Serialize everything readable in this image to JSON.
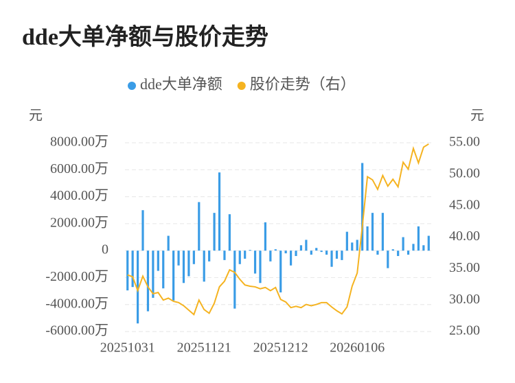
{
  "chart_data": {
    "type": "bar-line",
    "title": "dde大单净额与股价走势",
    "y_label": "元",
    "y2_label": "元",
    "categories": [
      "20251031",
      null,
      null,
      null,
      null,
      null,
      null,
      null,
      null,
      null,
      null,
      null,
      null,
      null,
      null,
      "20251121",
      null,
      null,
      null,
      null,
      null,
      null,
      null,
      null,
      null,
      null,
      null,
      null,
      null,
      null,
      "20251212",
      null,
      null,
      null,
      null,
      null,
      null,
      null,
      null,
      null,
      null,
      null,
      null,
      null,
      null,
      "20260106",
      null,
      null,
      null,
      null,
      null,
      null,
      null,
      null,
      null,
      null,
      null,
      null,
      null,
      null
    ],
    "series": [
      {
        "name": "dde大单净额",
        "type": "bar",
        "color": "#3a9ce6",
        "values": [
          -2950,
          -2700,
          -5400,
          3000,
          -4500,
          -3500,
          -1500,
          -2800,
          1100,
          -3700,
          -1100,
          -2400,
          -1900,
          -1000,
          3600,
          -2300,
          -800,
          2800,
          5800,
          -700,
          2700,
          -4300,
          -1000,
          -600,
          50,
          -1700,
          -2400,
          2100,
          -800,
          100,
          -3100,
          -200,
          -1100,
          -400,
          400,
          800,
          -300,
          200,
          -100,
          -300,
          -1200,
          -600,
          -700,
          1400,
          600,
          800,
          6500,
          1800,
          2800,
          -300,
          2800,
          -1300,
          100,
          -400,
          1000,
          -300,
          500,
          1800,
          400,
          1100
        ]
      },
      {
        "name": "股价走势（右）",
        "type": "line",
        "axis": "y2",
        "color": "#f5b320",
        "values": [
          34.0,
          33.7,
          31.5,
          33.8,
          32.1,
          31.0,
          31.2,
          30.0,
          30.3,
          29.8,
          29.6,
          29.1,
          28.4,
          27.7,
          30.0,
          28.5,
          27.9,
          29.5,
          32.1,
          33.0,
          34.8,
          34.4,
          33.3,
          32.4,
          32.2,
          32.1,
          31.8,
          32.0,
          31.5,
          32.0,
          30.1,
          29.7,
          28.8,
          29.0,
          28.8,
          29.3,
          29.1,
          29.3,
          29.6,
          29.6,
          28.9,
          28.3,
          27.8,
          28.9,
          32.2,
          34.3,
          41.7,
          49.6,
          49.1,
          47.6,
          49.8,
          48.1,
          49.2,
          48.0,
          51.9,
          50.8,
          54.1,
          51.8,
          54.3,
          54.8
        ]
      }
    ],
    "ylim": [
      -6000,
      8000
    ],
    "yticks": [
      {
        "value": -6000,
        "label": "-6000.00万"
      },
      {
        "value": -4000,
        "label": "-4000.00万"
      },
      {
        "value": -2000,
        "label": "-2000.00万"
      },
      0,
      {
        "value": 2000,
        "label": "2000.00万"
      },
      {
        "value": 4000,
        "label": "4000.00万"
      },
      {
        "value": 6000,
        "label": "6000.00万"
      },
      {
        "value": 8000,
        "label": "8000.00万"
      }
    ],
    "y2lim": [
      25,
      55
    ],
    "y2ticks": [
      {
        "value": 25,
        "label": "25.00"
      },
      {
        "value": 30,
        "label": "30.00"
      },
      {
        "value": 35,
        "label": "35.00"
      },
      {
        "value": 40,
        "label": "40.00"
      },
      {
        "value": 45,
        "label": "45.00"
      },
      {
        "value": 50,
        "label": "50.00"
      },
      {
        "value": 55,
        "label": "55.00"
      }
    ],
    "grid": true,
    "legend": "top"
  }
}
